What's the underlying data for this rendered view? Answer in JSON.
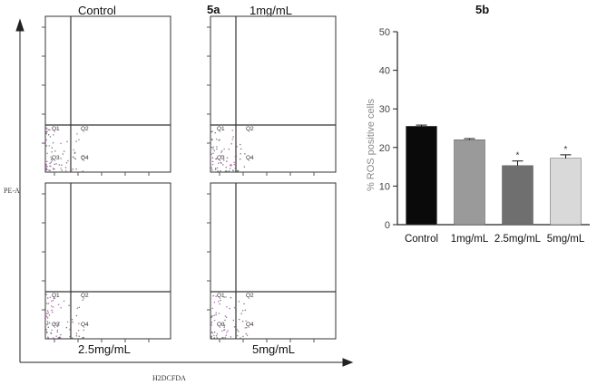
{
  "figure_5a": {
    "panel_label": "5a",
    "y_axis_label": "PE-A",
    "x_axis_label": "H2DCFDA",
    "plots": [
      {
        "title": "Control",
        "quadrants": [
          "Q1",
          "Q2",
          "Q3",
          "Q4"
        ]
      },
      {
        "title": "1mg/mL",
        "quadrants": [
          "Q1",
          "Q2",
          "Q3",
          "Q4"
        ]
      },
      {
        "title": "2.5mg/mL",
        "quadrants": [
          "Q1",
          "Q2",
          "Q3",
          "Q4"
        ]
      },
      {
        "title": "5mg/mL",
        "quadrants": [
          "Q1",
          "Q2",
          "Q3",
          "Q4"
        ]
      }
    ]
  },
  "chart_data": {
    "type": "bar",
    "title": "5b",
    "ylabel": "% ROS positive cells",
    "xlabel": "",
    "ylim": [
      0,
      50
    ],
    "yticks": [
      0,
      10,
      20,
      30,
      40,
      50
    ],
    "categories": [
      "Control",
      "1mg/mL",
      "2.5mg/mL",
      "5mg/mL"
    ],
    "values": [
      25.5,
      22,
      15.3,
      17.2
    ],
    "errors": [
      0.3,
      0.3,
      1.2,
      0.9
    ],
    "significance": [
      "",
      "",
      "*",
      "*"
    ],
    "bar_colors": [
      "#0a0a0a",
      "#9a9a9a",
      "#6f6f6f",
      "#d9d9d9"
    ],
    "grid": false
  }
}
